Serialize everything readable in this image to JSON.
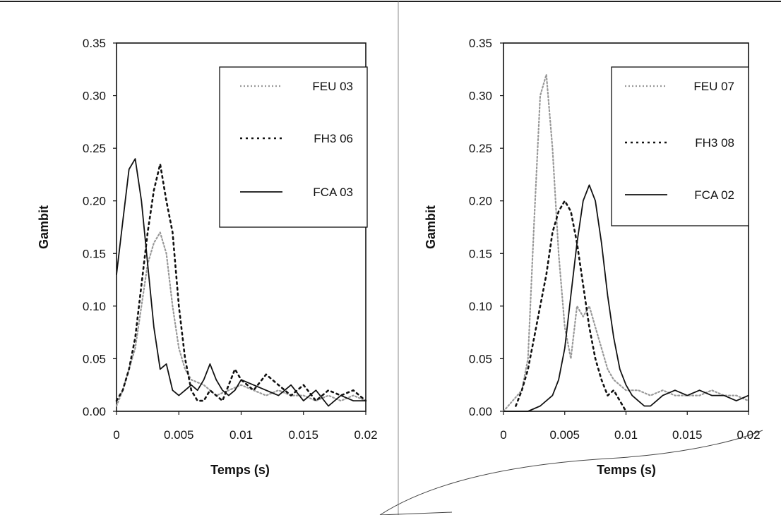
{
  "chart_data": [
    {
      "type": "line",
      "title": "",
      "xlabel": "Temps (s)",
      "ylabel": "Gambit",
      "xlim": [
        0,
        0.02
      ],
      "ylim": [
        0,
        0.35
      ],
      "xticks": [
        "0",
        "0.005",
        "0.01",
        "0.015",
        "0.02"
      ],
      "yticks": [
        "0.00",
        "0.05",
        "0.10",
        "0.15",
        "0.20",
        "0.25",
        "0.30",
        "0.35"
      ],
      "grid": false,
      "legend": "top-right",
      "series": [
        {
          "name": "FEU 03",
          "style": "dotted-light",
          "x": [
            0,
            0.0005,
            0.001,
            0.0015,
            0.002,
            0.0025,
            0.003,
            0.0035,
            0.004,
            0.0045,
            0.005,
            0.0055,
            0.006,
            0.007,
            0.008,
            0.009,
            0.01,
            0.011,
            0.012,
            0.013,
            0.014,
            0.015,
            0.016,
            0.017,
            0.018,
            0.019,
            0.02
          ],
          "y": [
            0.005,
            0.02,
            0.04,
            0.06,
            0.1,
            0.14,
            0.16,
            0.17,
            0.15,
            0.1,
            0.06,
            0.04,
            0.03,
            0.025,
            0.015,
            0.02,
            0.025,
            0.02,
            0.015,
            0.02,
            0.015,
            0.015,
            0.01,
            0.015,
            0.01,
            0.015,
            0.01
          ]
        },
        {
          "name": "FH3 06",
          "style": "dotted",
          "x": [
            0,
            0.0005,
            0.001,
            0.0015,
            0.002,
            0.0025,
            0.003,
            0.0035,
            0.004,
            0.0045,
            0.005,
            0.0055,
            0.006,
            0.0065,
            0.007,
            0.0075,
            0.008,
            0.0085,
            0.009,
            0.0095,
            0.01,
            0.011,
            0.012,
            0.013,
            0.014,
            0.015,
            0.016,
            0.017,
            0.018,
            0.019,
            0.02
          ],
          "y": [
            0.01,
            0.02,
            0.04,
            0.07,
            0.12,
            0.17,
            0.21,
            0.235,
            0.2,
            0.17,
            0.1,
            0.05,
            0.02,
            0.01,
            0.01,
            0.02,
            0.015,
            0.01,
            0.025,
            0.04,
            0.03,
            0.02,
            0.035,
            0.025,
            0.015,
            0.025,
            0.01,
            0.02,
            0.015,
            0.02,
            0.01
          ]
        },
        {
          "name": "FCA 03",
          "style": "solid",
          "x": [
            0,
            0.0005,
            0.001,
            0.0015,
            0.002,
            0.0025,
            0.003,
            0.0035,
            0.004,
            0.0045,
            0.005,
            0.0055,
            0.006,
            0.0065,
            0.007,
            0.0075,
            0.008,
            0.0085,
            0.009,
            0.0095,
            0.01,
            0.011,
            0.012,
            0.013,
            0.014,
            0.015,
            0.016,
            0.017,
            0.018,
            0.019,
            0.02
          ],
          "y": [
            0.13,
            0.18,
            0.23,
            0.24,
            0.2,
            0.14,
            0.08,
            0.04,
            0.045,
            0.02,
            0.015,
            0.02,
            0.025,
            0.02,
            0.03,
            0.045,
            0.03,
            0.02,
            0.015,
            0.02,
            0.03,
            0.025,
            0.02,
            0.015,
            0.025,
            0.01,
            0.02,
            0.005,
            0.015,
            0.01,
            0.01
          ]
        }
      ]
    },
    {
      "type": "line",
      "title": "",
      "xlabel": "Temps (s)",
      "ylabel": "Gambit",
      "xlim": [
        0,
        0.02
      ],
      "ylim": [
        0,
        0.35
      ],
      "xticks": [
        "0",
        "0.005",
        "0.01",
        "0.015",
        "0.02"
      ],
      "yticks": [
        "0.00",
        "0.05",
        "0.10",
        "0.15",
        "0.20",
        "0.25",
        "0.30",
        "0.35"
      ],
      "grid": false,
      "legend": "top-right",
      "series": [
        {
          "name": "FEU 07",
          "style": "dotted-light",
          "x": [
            0,
            0.0015,
            0.002,
            0.0025,
            0.003,
            0.0035,
            0.004,
            0.0045,
            0.005,
            0.0055,
            0.006,
            0.0065,
            0.007,
            0.0075,
            0.008,
            0.0085,
            0.009,
            0.01,
            0.011,
            0.012,
            0.013,
            0.014,
            0.015,
            0.016,
            0.017,
            0.018,
            0.019,
            0.02
          ],
          "y": [
            0,
            0.02,
            0.05,
            0.18,
            0.3,
            0.32,
            0.25,
            0.15,
            0.08,
            0.05,
            0.1,
            0.09,
            0.1,
            0.08,
            0.06,
            0.04,
            0.03,
            0.02,
            0.02,
            0.015,
            0.02,
            0.015,
            0.015,
            0.015,
            0.02,
            0.015,
            0.015,
            0.01
          ]
        },
        {
          "name": "FH3 08",
          "style": "dotted",
          "x": [
            0.001,
            0.0015,
            0.002,
            0.0025,
            0.003,
            0.0035,
            0.004,
            0.0045,
            0.005,
            0.0055,
            0.006,
            0.0065,
            0.007,
            0.0075,
            0.008,
            0.0085,
            0.009,
            0.0095,
            0.01
          ],
          "y": [
            0.005,
            0.02,
            0.04,
            0.07,
            0.1,
            0.13,
            0.17,
            0.19,
            0.2,
            0.19,
            0.16,
            0.12,
            0.08,
            0.05,
            0.03,
            0.015,
            0.02,
            0.01,
            0
          ]
        },
        {
          "name": "FCA 02",
          "style": "solid",
          "x": [
            0,
            0.002,
            0.003,
            0.004,
            0.0045,
            0.005,
            0.0055,
            0.006,
            0.0065,
            0.007,
            0.0075,
            0.008,
            0.0085,
            0.009,
            0.0095,
            0.01,
            0.0105,
            0.011,
            0.0115,
            0.012,
            0.0125,
            0.013,
            0.014,
            0.015,
            0.016,
            0.017,
            0.018,
            0.019,
            0.02
          ],
          "y": [
            0,
            0,
            0.005,
            0.015,
            0.03,
            0.06,
            0.11,
            0.16,
            0.2,
            0.215,
            0.2,
            0.16,
            0.11,
            0.07,
            0.04,
            0.025,
            0.015,
            0.01,
            0.005,
            0.005,
            0.01,
            0.015,
            0.02,
            0.015,
            0.02,
            0.015,
            0.015,
            0.01,
            0.015
          ]
        }
      ]
    }
  ]
}
